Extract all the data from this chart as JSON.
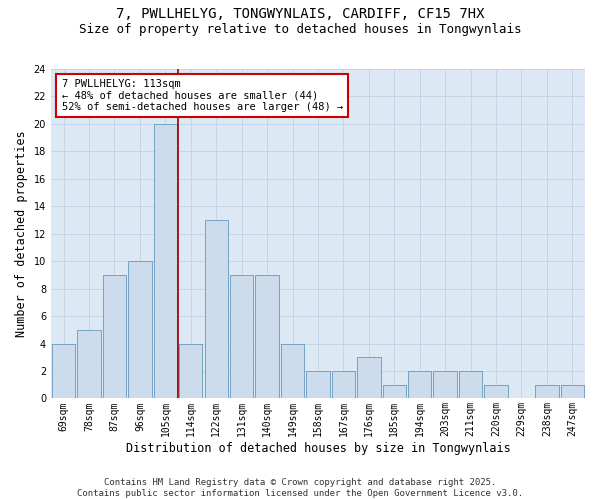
{
  "title": "7, PWLLHELYG, TONGWYNLAIS, CARDIFF, CF15 7HX",
  "subtitle": "Size of property relative to detached houses in Tongwynlais",
  "xlabel": "Distribution of detached houses by size in Tongwynlais",
  "ylabel": "Number of detached properties",
  "bar_labels": [
    "69sqm",
    "78sqm",
    "87sqm",
    "96sqm",
    "105sqm",
    "114sqm",
    "122sqm",
    "131sqm",
    "140sqm",
    "149sqm",
    "158sqm",
    "167sqm",
    "176sqm",
    "185sqm",
    "194sqm",
    "203sqm",
    "211sqm",
    "220sqm",
    "229sqm",
    "238sqm",
    "247sqm"
  ],
  "bar_values": [
    4,
    5,
    9,
    10,
    20,
    4,
    13,
    9,
    9,
    4,
    2,
    2,
    3,
    1,
    2,
    2,
    2,
    1,
    0,
    1,
    1
  ],
  "bar_color": "#ccdcec",
  "bar_edge_color": "#6699bb",
  "vline_color": "#990000",
  "vline_x_index": 5,
  "annotation_text": "7 PWLLHELYG: 113sqm\n← 48% of detached houses are smaller (44)\n52% of semi-detached houses are larger (48) →",
  "annotation_box_facecolor": "#ffffff",
  "annotation_box_edgecolor": "#cc0000",
  "ylim": [
    0,
    24
  ],
  "yticks": [
    0,
    2,
    4,
    6,
    8,
    10,
    12,
    14,
    16,
    18,
    20,
    22,
    24
  ],
  "grid_color": "#c5d5e5",
  "bg_color": "#dce8f4",
  "footer": "Contains HM Land Registry data © Crown copyright and database right 2025.\nContains public sector information licensed under the Open Government Licence v3.0.",
  "title_fontsize": 10,
  "subtitle_fontsize": 9,
  "xlabel_fontsize": 8.5,
  "ylabel_fontsize": 8.5,
  "tick_fontsize": 7,
  "annotation_fontsize": 7.5,
  "footer_fontsize": 6.5
}
